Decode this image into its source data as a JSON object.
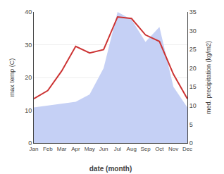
{
  "chart_data": {
    "type": "line",
    "xlabel": "date (month)",
    "ylabel": "max temp (C)",
    "y2label": "med. precipitation (kg/m2)",
    "categories": [
      "Jan",
      "Feb",
      "Mar",
      "Apr",
      "May",
      "Jun",
      "Jul",
      "Aug",
      "Sep",
      "Oct",
      "Nov",
      "Dec"
    ],
    "series": [
      {
        "type": "area",
        "axis": "y2",
        "color": "#c5d0f5",
        "values": [
          9.5,
          10.0,
          10.5,
          11.0,
          13.0,
          20.0,
          35.0,
          33.0,
          27.0,
          31.0,
          15.0,
          9.5
        ]
      },
      {
        "type": "line",
        "color": "#cc3333",
        "values": [
          13.5,
          16.0,
          22.0,
          29.5,
          27.5,
          28.5,
          38.5,
          38.0,
          33.0,
          31.0,
          21.0,
          13.5
        ]
      }
    ],
    "ylim": [
      0,
      40
    ],
    "yticks": [
      0,
      10,
      20,
      30,
      40
    ],
    "y2lim": [
      0,
      35
    ],
    "y2ticks": [
      0,
      5,
      10,
      15,
      20,
      25,
      30,
      35
    ],
    "grid": true
  }
}
